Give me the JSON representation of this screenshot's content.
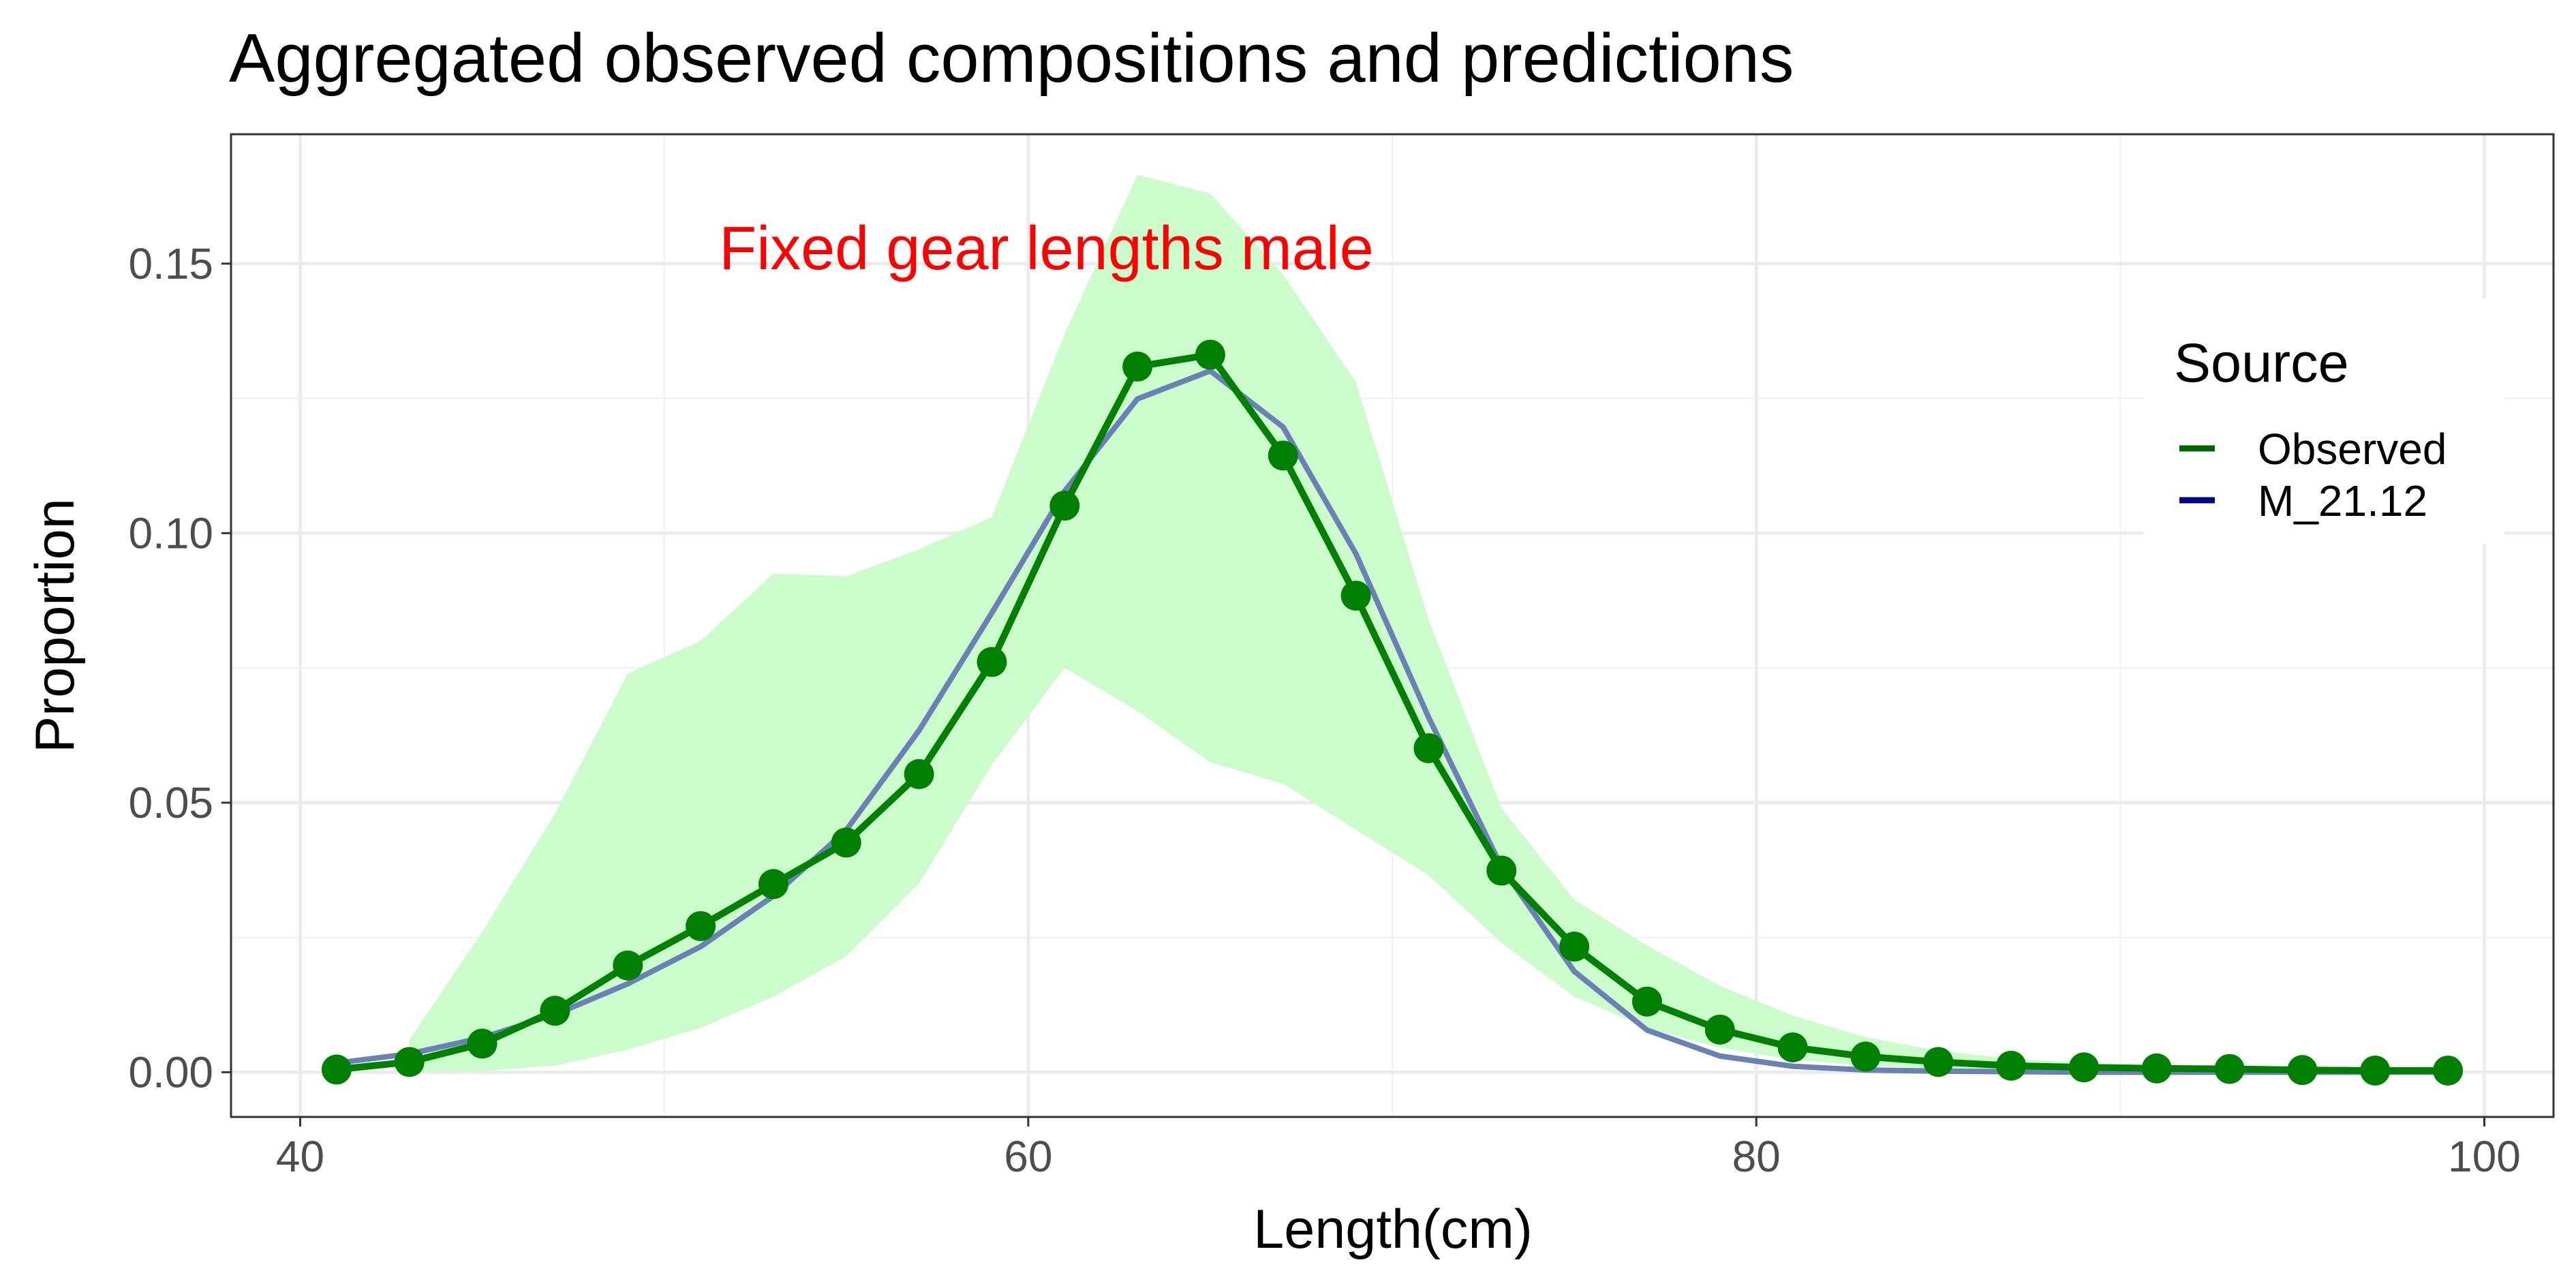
{
  "chart_data": {
    "type": "line",
    "title": "Aggregated observed compositions and predictions",
    "xlabel": "Length(cm)",
    "ylabel": "Proportion",
    "xlim": [
      38.1,
      101.9
    ],
    "ylim": [
      -0.0083,
      0.174
    ],
    "x_ticks": [
      40,
      60,
      80,
      100
    ],
    "x_tick_labels": [
      "40",
      "60",
      "80",
      "100"
    ],
    "y_ticks": [
      0.0,
      0.05,
      0.1,
      0.15
    ],
    "y_tick_labels": [
      "0.00",
      "0.05",
      "0.10",
      "0.15"
    ],
    "grid": true,
    "annotation": {
      "text": "Fixed gear lengths male",
      "color": "#ff0000",
      "x": 60.5,
      "y": 0.149
    },
    "legend": {
      "title": "Source",
      "position": "right-inside",
      "entries": [
        {
          "label": "Observed",
          "color": "#006400"
        },
        {
          "label": "M_21.12",
          "color": "#00008b"
        }
      ]
    },
    "x": [
      41,
      43,
      45,
      47,
      49,
      51,
      53,
      55,
      57,
      59,
      61,
      63,
      65,
      67,
      69,
      71,
      73,
      75,
      77,
      79,
      81,
      83,
      85,
      87,
      89,
      91,
      93,
      95,
      97,
      99
    ],
    "series": [
      {
        "name": "Observed",
        "role": "line+points",
        "color": "#008000",
        "values": [
          0.0005,
          0.0019,
          0.0053,
          0.0114,
          0.0198,
          0.0271,
          0.0349,
          0.0426,
          0.0553,
          0.0761,
          0.1051,
          0.1309,
          0.1331,
          0.1144,
          0.0884,
          0.0601,
          0.0374,
          0.0233,
          0.0131,
          0.0079,
          0.0046,
          0.0029,
          0.0019,
          0.0012,
          0.0009,
          0.0007,
          0.0006,
          0.0004,
          0.0003,
          0.0003
        ]
      },
      {
        "name": "M_21.12",
        "role": "line",
        "color": "#6b80b3",
        "values": [
          0.0017,
          0.0034,
          0.0064,
          0.0107,
          0.0164,
          0.0233,
          0.0327,
          0.0449,
          0.0634,
          0.0852,
          0.1078,
          0.1249,
          0.1301,
          0.1197,
          0.0962,
          0.0658,
          0.0381,
          0.0187,
          0.0078,
          0.003,
          0.0011,
          0.0004,
          0.0002,
          0.0001,
          0.0,
          0.0,
          0.0,
          0.0,
          0.0,
          0.0
        ]
      }
    ],
    "band": {
      "color": "#ccfccc",
      "x": [
        43,
        45,
        47,
        49,
        51,
        53,
        55,
        57,
        59,
        61,
        63,
        65,
        67,
        69,
        71,
        73,
        75,
        77,
        79,
        81,
        83,
        85,
        87,
        89,
        91,
        93,
        95,
        97,
        99
      ],
      "upper": [
        0.006,
        0.026,
        0.048,
        0.074,
        0.08,
        0.0925,
        0.092,
        0.097,
        0.103,
        0.137,
        0.1665,
        0.163,
        0.148,
        0.128,
        0.084,
        0.049,
        0.032,
        0.0235,
        0.016,
        0.0105,
        0.0065,
        0.004,
        0.0025,
        0.0017,
        0.0012,
        0.0009,
        0.0007,
        0.0005,
        0.0004
      ],
      "lower": [
        0.0,
        0.0002,
        0.0012,
        0.0042,
        0.0082,
        0.014,
        0.0215,
        0.035,
        0.057,
        0.075,
        0.067,
        0.0575,
        0.0535,
        0.045,
        0.0365,
        0.024,
        0.014,
        0.0082,
        0.0045,
        0.0023,
        0.0012,
        0.0006,
        0.0003,
        0.0002,
        0.0001,
        0.0,
        0.0,
        0.0,
        0.0
      ]
    }
  }
}
